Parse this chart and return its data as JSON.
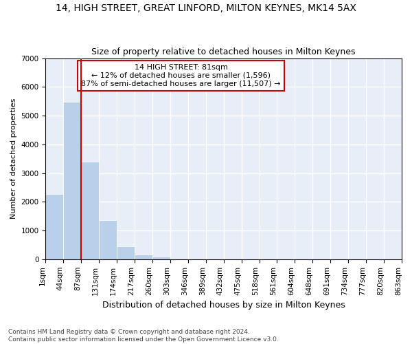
{
  "title1": "14, HIGH STREET, GREAT LINFORD, MILTON KEYNES, MK14 5AX",
  "title2": "Size of property relative to detached houses in Milton Keynes",
  "xlabel": "Distribution of detached houses by size in Milton Keynes",
  "ylabel": "Number of detached properties",
  "footnote": "Contains HM Land Registry data © Crown copyright and database right 2024.\nContains public sector information licensed under the Open Government Licence v3.0.",
  "annotation_line1": "14 HIGH STREET: 81sqm",
  "annotation_line2": "← 12% of detached houses are smaller (1,596)",
  "annotation_line3": "87% of semi-detached houses are larger (11,507) →",
  "bar_color": "#b8d0ea",
  "bar_edge_color": "#ffffff",
  "bg_color": "#e8eef8",
  "grid_color": "#ffffff",
  "red_line_color": "#cc0000",
  "annotation_box_color": "#cc0000",
  "bin_labels": [
    "1sqm",
    "44sqm",
    "87sqm",
    "131sqm",
    "174sqm",
    "217sqm",
    "260sqm",
    "303sqm",
    "346sqm",
    "389sqm",
    "432sqm",
    "475sqm",
    "518sqm",
    "561sqm",
    "604sqm",
    "648sqm",
    "691sqm",
    "734sqm",
    "777sqm",
    "820sqm",
    "863sqm"
  ],
  "values": [
    2270,
    5470,
    3400,
    1350,
    450,
    160,
    80,
    0,
    0,
    0,
    0,
    0,
    0,
    0,
    0,
    0,
    0,
    0,
    0,
    0
  ],
  "red_line_x": 2,
  "ylim": [
    0,
    7000
  ],
  "yticks": [
    0,
    1000,
    2000,
    3000,
    4000,
    5000,
    6000,
    7000
  ],
  "fig_width": 6.0,
  "fig_height": 5.0,
  "title1_fontsize": 10,
  "title2_fontsize": 9,
  "xlabel_fontsize": 9,
  "ylabel_fontsize": 8,
  "tick_fontsize": 7.5,
  "annotation_fontsize": 8,
  "footnote_fontsize": 6.5
}
